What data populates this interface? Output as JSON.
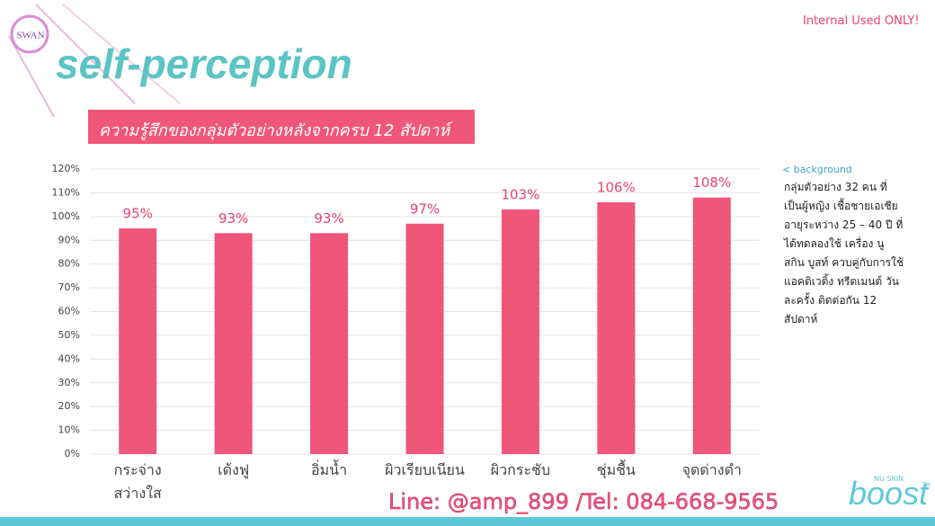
{
  "logo": "SWAN",
  "notice": "Internal Used ONLY!",
  "background_label": "< background",
  "background_text": "กลุ่มตัวอย่าง 32 คน ที่\nเป็นผู้หญิง เชื้อชายเอเชีย\nอายุระหว่าง 25 – 40 ปี ที่\nได้ทดลองใช้ เครื่อง นู\nสกิน บูสท์ ควบคู่กับการใช้\nแอคติเวติ้ง ทรีตเมนต์ วัน\nละครั้ง ติดต่อกัน 12\nสัปดาห์",
  "contact": "Line: @amp_899 /Tel: 084-668-9565",
  "brand": {
    "company": "NU SKIN",
    "product": "boost",
    "mark": "TM"
  },
  "chart_data": {
    "type": "bar",
    "title": "self-perception",
    "subtitle": "ความรู้สึกของกลุ่มตัวอย่างหลังจากครบ 12 สัปดาห์",
    "categories": [
      "กระจ่าง\nสว่างใส",
      "เด้งฟู",
      "อิ่มน้ำ",
      "ผิวเรียบเนียน",
      "ผิวกระชับ",
      "ชุ่มชื้น",
      "จุดด่างดำ"
    ],
    "values": [
      95,
      93,
      93,
      97,
      103,
      106,
      108
    ],
    "value_labels": [
      "95%",
      "93%",
      "93%",
      "97%",
      "103%",
      "106%",
      "108%"
    ],
    "color": "#f0557a",
    "ylim": [
      0,
      120
    ],
    "yticks": [
      {
        "value": 0,
        "label": "0%"
      },
      {
        "value": 10,
        "label": "10%"
      },
      {
        "value": 20,
        "label": "20%"
      },
      {
        "value": 30,
        "label": "30%"
      },
      {
        "value": 40,
        "label": "40%"
      },
      {
        "value": 50,
        "label": "50%"
      },
      {
        "value": 60,
        "label": "60%"
      },
      {
        "value": 70,
        "label": "70%"
      },
      {
        "value": 80,
        "label": "80%"
      },
      {
        "value": 90,
        "label": "90%"
      },
      {
        "value": 100,
        "label": "100%"
      },
      {
        "value": 110,
        "label": "110%"
      },
      {
        "value": 120,
        "label": "120%"
      }
    ],
    "grid": true
  }
}
